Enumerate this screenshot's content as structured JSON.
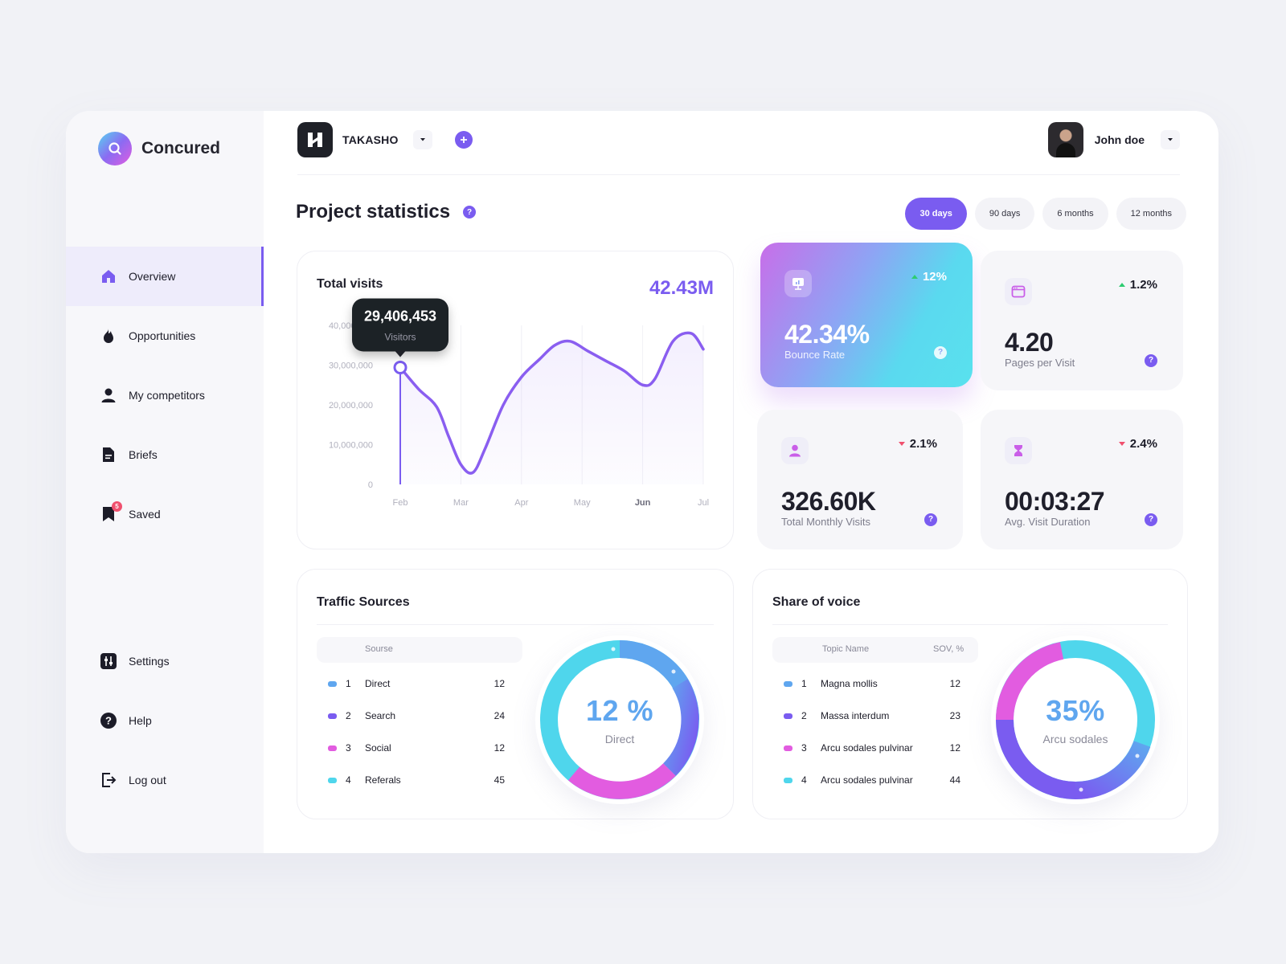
{
  "app": {
    "name": "Concured"
  },
  "sidebar": {
    "items": [
      {
        "label": "Overview",
        "icon": "home-icon",
        "active": true
      },
      {
        "label": "Opportunities",
        "icon": "flame-icon"
      },
      {
        "label": "My competitors",
        "icon": "user-icon"
      },
      {
        "label": "Briefs",
        "icon": "document-icon"
      },
      {
        "label": "Saved",
        "icon": "bookmark-icon",
        "badge": "5"
      }
    ],
    "bottom": [
      {
        "label": "Settings",
        "icon": "settings-icon"
      },
      {
        "label": "Help",
        "icon": "help-icon"
      },
      {
        "label": "Log out",
        "icon": "logout-icon"
      }
    ]
  },
  "topbar": {
    "project": "TAKASHO",
    "user": "John doe"
  },
  "page": {
    "title": "Project statistics",
    "help": "?"
  },
  "periods": [
    {
      "label": "30 days",
      "active": true
    },
    {
      "label": "90 days"
    },
    {
      "label": "6 months"
    },
    {
      "label": "12 months"
    }
  ],
  "visits": {
    "title": "Total visits",
    "total": "42.43M",
    "tooltip": {
      "value": "29,406,453",
      "label": "Visitors"
    }
  },
  "chart_data": {
    "type": "line",
    "title": "Total visits",
    "x": [
      "Feb",
      "Mar",
      "Apr",
      "May",
      "Jun",
      "Jul"
    ],
    "y_ticks": [
      "40,000,000",
      "30,000,000",
      "20,000,000",
      "10,000,000",
      "0"
    ],
    "ylim": [
      0,
      40000000
    ],
    "grid": true,
    "series": [
      {
        "points": [
          [
            0.0,
            29406453
          ],
          [
            0.3,
            24000000
          ],
          [
            0.6,
            19500000
          ],
          [
            0.8,
            12000000
          ],
          [
            1.0,
            5000000
          ],
          [
            1.2,
            3000000
          ],
          [
            1.4,
            9000000
          ],
          [
            1.7,
            20000000
          ],
          [
            2.0,
            27000000
          ],
          [
            2.3,
            31500000
          ],
          [
            2.55,
            35000000
          ],
          [
            2.8,
            36000000
          ],
          [
            3.1,
            33500000
          ],
          [
            3.4,
            31000000
          ],
          [
            3.7,
            28500000
          ],
          [
            4.0,
            25000000
          ],
          [
            4.2,
            26500000
          ],
          [
            4.5,
            36000000
          ],
          [
            4.8,
            38000000
          ],
          [
            5.0,
            34000000
          ]
        ]
      }
    ],
    "highlight": {
      "x": "Feb",
      "y": 29406453,
      "label": "Visitors"
    },
    "color": "#8a5ef0"
  },
  "stats": {
    "bounce": {
      "value": "42.34%",
      "label": "Bounce Rate",
      "change": "12%",
      "direction": "up"
    },
    "pages": {
      "value": "4.20",
      "label": "Pages per Visit",
      "change": "1.2%",
      "direction": "up"
    },
    "monthly": {
      "value": "326.60K",
      "label": "Total Monthly Visits",
      "change": "2.1%",
      "direction": "down"
    },
    "duration": {
      "value": "00:03:27",
      "label": "Avg. Visit Duration",
      "change": "2.4%",
      "direction": "down"
    }
  },
  "traffic": {
    "title": "Traffic Sources",
    "header": {
      "source": "Sourse"
    },
    "rows": [
      {
        "n": "1",
        "name": "Direct",
        "value": "12",
        "color": "#5fa6ef"
      },
      {
        "n": "2",
        "name": "Search",
        "value": "24",
        "color": "#7a5cf0"
      },
      {
        "n": "3",
        "name": "Social",
        "value": "12",
        "color": "#e25ce0"
      },
      {
        "n": "4",
        "name": "Referals",
        "value": "45",
        "color": "#4fd6ec"
      }
    ],
    "donut": {
      "value": "12 %",
      "label": "Direct"
    }
  },
  "share": {
    "title": "Share of voice",
    "header": {
      "topic": "Topic Name",
      "sov": "SOV, %"
    },
    "rows": [
      {
        "n": "1",
        "name": "Magna mollis",
        "value": "12",
        "color": "#5fa6ef"
      },
      {
        "n": "2",
        "name": "Massa interdum",
        "value": "23",
        "color": "#7a5cf0"
      },
      {
        "n": "3",
        "name": "Arcu sodales pulvinar",
        "value": "12",
        "color": "#e25ce0"
      },
      {
        "n": "4",
        "name": "Arcu sodales pulvinar",
        "value": "44",
        "color": "#4fd6ec"
      }
    ],
    "donut": {
      "value": "35%",
      "label": "Arcu sodales"
    }
  },
  "colors": {
    "accent": "#7a5cf0",
    "positive": "#2ecc71",
    "negative": "#f0506e"
  }
}
